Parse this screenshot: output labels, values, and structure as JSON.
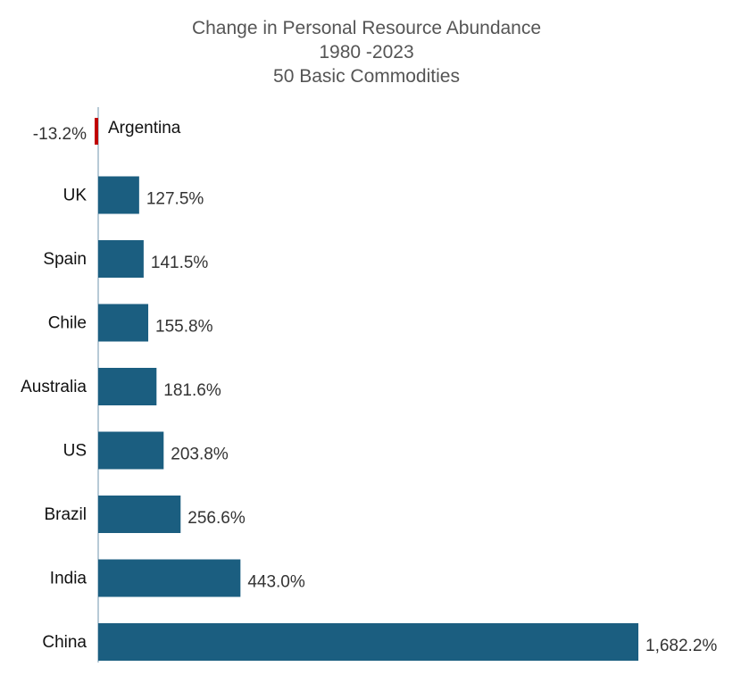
{
  "chart_data": {
    "type": "bar",
    "orientation": "horizontal",
    "title": [
      "Change in Personal Resource Abundance",
      "1980 -2023",
      "50 Basic Commodities"
    ],
    "categories": [
      "Argentina",
      "UK",
      "Spain",
      "Chile",
      "Australia",
      "US",
      "Brazil",
      "India",
      "China"
    ],
    "values": [
      -13.2,
      127.5,
      141.5,
      155.8,
      181.6,
      203.8,
      256.6,
      443.0,
      1682.2
    ],
    "value_labels": [
      "-13.2%",
      "127.5%",
      "141.5%",
      "155.8%",
      "181.6%",
      "203.8%",
      "256.6%",
      "443.0%",
      "1,682.2%"
    ],
    "unit": "%",
    "xlim": [
      -13.2,
      1682.2
    ],
    "grid": false,
    "legend": "none",
    "colors": {
      "positive": "#1b5e80",
      "negative": "#c00000",
      "axis": "#9fb9c9"
    }
  }
}
